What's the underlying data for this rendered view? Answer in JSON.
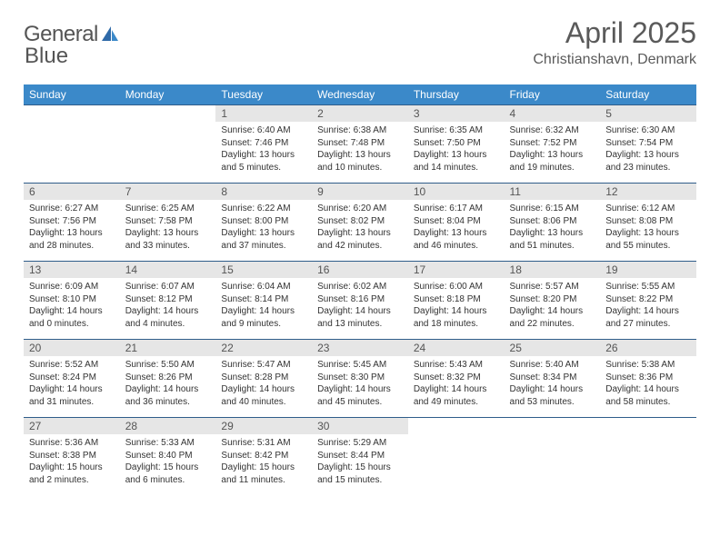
{
  "brand": {
    "name_part1": "General",
    "name_part2": "Blue",
    "text_color": "#6a6a6a",
    "accent_color": "#3b89c9"
  },
  "title": {
    "month": "April 2025",
    "location": "Christianshavn, Denmark",
    "month_fontsize": 32,
    "loc_fontsize": 16,
    "color": "#5a5a5a"
  },
  "table": {
    "header_bg": "#3b89c9",
    "header_fg": "#ffffff",
    "row_border_color": "#2f5d8a",
    "daynum_bg": "#e6e6e6",
    "body_fontsize": 10,
    "columns": [
      "Sunday",
      "Monday",
      "Tuesday",
      "Wednesday",
      "Thursday",
      "Friday",
      "Saturday"
    ]
  },
  "weeks": [
    [
      {
        "n": "",
        "sr": "",
        "ss": "",
        "dl": ""
      },
      {
        "n": "",
        "sr": "",
        "ss": "",
        "dl": ""
      },
      {
        "n": "1",
        "sr": "Sunrise: 6:40 AM",
        "ss": "Sunset: 7:46 PM",
        "dl": "Daylight: 13 hours and 5 minutes."
      },
      {
        "n": "2",
        "sr": "Sunrise: 6:38 AM",
        "ss": "Sunset: 7:48 PM",
        "dl": "Daylight: 13 hours and 10 minutes."
      },
      {
        "n": "3",
        "sr": "Sunrise: 6:35 AM",
        "ss": "Sunset: 7:50 PM",
        "dl": "Daylight: 13 hours and 14 minutes."
      },
      {
        "n": "4",
        "sr": "Sunrise: 6:32 AM",
        "ss": "Sunset: 7:52 PM",
        "dl": "Daylight: 13 hours and 19 minutes."
      },
      {
        "n": "5",
        "sr": "Sunrise: 6:30 AM",
        "ss": "Sunset: 7:54 PM",
        "dl": "Daylight: 13 hours and 23 minutes."
      }
    ],
    [
      {
        "n": "6",
        "sr": "Sunrise: 6:27 AM",
        "ss": "Sunset: 7:56 PM",
        "dl": "Daylight: 13 hours and 28 minutes."
      },
      {
        "n": "7",
        "sr": "Sunrise: 6:25 AM",
        "ss": "Sunset: 7:58 PM",
        "dl": "Daylight: 13 hours and 33 minutes."
      },
      {
        "n": "8",
        "sr": "Sunrise: 6:22 AM",
        "ss": "Sunset: 8:00 PM",
        "dl": "Daylight: 13 hours and 37 minutes."
      },
      {
        "n": "9",
        "sr": "Sunrise: 6:20 AM",
        "ss": "Sunset: 8:02 PM",
        "dl": "Daylight: 13 hours and 42 minutes."
      },
      {
        "n": "10",
        "sr": "Sunrise: 6:17 AM",
        "ss": "Sunset: 8:04 PM",
        "dl": "Daylight: 13 hours and 46 minutes."
      },
      {
        "n": "11",
        "sr": "Sunrise: 6:15 AM",
        "ss": "Sunset: 8:06 PM",
        "dl": "Daylight: 13 hours and 51 minutes."
      },
      {
        "n": "12",
        "sr": "Sunrise: 6:12 AM",
        "ss": "Sunset: 8:08 PM",
        "dl": "Daylight: 13 hours and 55 minutes."
      }
    ],
    [
      {
        "n": "13",
        "sr": "Sunrise: 6:09 AM",
        "ss": "Sunset: 8:10 PM",
        "dl": "Daylight: 14 hours and 0 minutes."
      },
      {
        "n": "14",
        "sr": "Sunrise: 6:07 AM",
        "ss": "Sunset: 8:12 PM",
        "dl": "Daylight: 14 hours and 4 minutes."
      },
      {
        "n": "15",
        "sr": "Sunrise: 6:04 AM",
        "ss": "Sunset: 8:14 PM",
        "dl": "Daylight: 14 hours and 9 minutes."
      },
      {
        "n": "16",
        "sr": "Sunrise: 6:02 AM",
        "ss": "Sunset: 8:16 PM",
        "dl": "Daylight: 14 hours and 13 minutes."
      },
      {
        "n": "17",
        "sr": "Sunrise: 6:00 AM",
        "ss": "Sunset: 8:18 PM",
        "dl": "Daylight: 14 hours and 18 minutes."
      },
      {
        "n": "18",
        "sr": "Sunrise: 5:57 AM",
        "ss": "Sunset: 8:20 PM",
        "dl": "Daylight: 14 hours and 22 minutes."
      },
      {
        "n": "19",
        "sr": "Sunrise: 5:55 AM",
        "ss": "Sunset: 8:22 PM",
        "dl": "Daylight: 14 hours and 27 minutes."
      }
    ],
    [
      {
        "n": "20",
        "sr": "Sunrise: 5:52 AM",
        "ss": "Sunset: 8:24 PM",
        "dl": "Daylight: 14 hours and 31 minutes."
      },
      {
        "n": "21",
        "sr": "Sunrise: 5:50 AM",
        "ss": "Sunset: 8:26 PM",
        "dl": "Daylight: 14 hours and 36 minutes."
      },
      {
        "n": "22",
        "sr": "Sunrise: 5:47 AM",
        "ss": "Sunset: 8:28 PM",
        "dl": "Daylight: 14 hours and 40 minutes."
      },
      {
        "n": "23",
        "sr": "Sunrise: 5:45 AM",
        "ss": "Sunset: 8:30 PM",
        "dl": "Daylight: 14 hours and 45 minutes."
      },
      {
        "n": "24",
        "sr": "Sunrise: 5:43 AM",
        "ss": "Sunset: 8:32 PM",
        "dl": "Daylight: 14 hours and 49 minutes."
      },
      {
        "n": "25",
        "sr": "Sunrise: 5:40 AM",
        "ss": "Sunset: 8:34 PM",
        "dl": "Daylight: 14 hours and 53 minutes."
      },
      {
        "n": "26",
        "sr": "Sunrise: 5:38 AM",
        "ss": "Sunset: 8:36 PM",
        "dl": "Daylight: 14 hours and 58 minutes."
      }
    ],
    [
      {
        "n": "27",
        "sr": "Sunrise: 5:36 AM",
        "ss": "Sunset: 8:38 PM",
        "dl": "Daylight: 15 hours and 2 minutes."
      },
      {
        "n": "28",
        "sr": "Sunrise: 5:33 AM",
        "ss": "Sunset: 8:40 PM",
        "dl": "Daylight: 15 hours and 6 minutes."
      },
      {
        "n": "29",
        "sr": "Sunrise: 5:31 AM",
        "ss": "Sunset: 8:42 PM",
        "dl": "Daylight: 15 hours and 11 minutes."
      },
      {
        "n": "30",
        "sr": "Sunrise: 5:29 AM",
        "ss": "Sunset: 8:44 PM",
        "dl": "Daylight: 15 hours and 15 minutes."
      },
      {
        "n": "",
        "sr": "",
        "ss": "",
        "dl": ""
      },
      {
        "n": "",
        "sr": "",
        "ss": "",
        "dl": ""
      },
      {
        "n": "",
        "sr": "",
        "ss": "",
        "dl": ""
      }
    ]
  ]
}
